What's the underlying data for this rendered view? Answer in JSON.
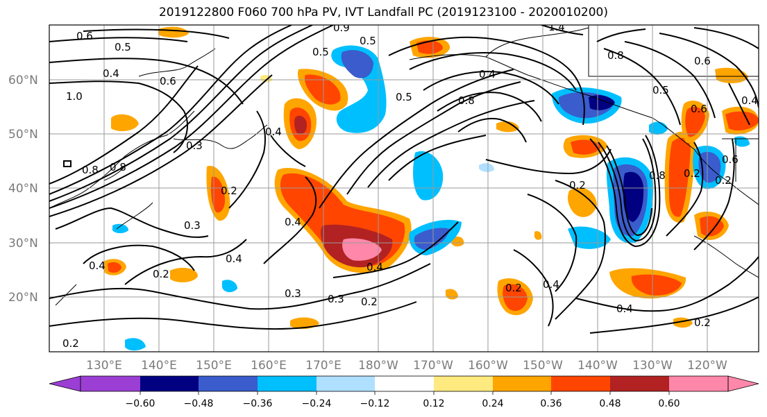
{
  "title": "2019122800 F060 700 hPa PV, IVT Landfall PC (2019123100 - 2020010200)",
  "lat_labels": [
    "60°N",
    "50°N",
    "40°N",
    "30°N",
    "20°N"
  ],
  "lon_labels": [
    "130°E",
    "140°E",
    "150°E",
    "160°E",
    "170°E",
    "180°W",
    "170°W",
    "160°W",
    "150°W",
    "140°W",
    "130°W",
    "120°W"
  ],
  "colorbar": {
    "ticks": [
      "−0.60",
      "−0.48",
      "−0.36",
      "−0.24",
      "−0.12",
      "0.12",
      "0.24",
      "0.36",
      "0.48",
      "0.60"
    ],
    "colors": [
      "#9b3fd4",
      "#000080",
      "#3a5ccc",
      "#00bfff",
      "#b0e0ff",
      "#ffffff",
      "#ffea80",
      "#ffa500",
      "#ff4500",
      "#b22222",
      "#ff88aa"
    ]
  },
  "contour_labels": [
    "0.6",
    "0.5",
    "0.4",
    "1.0",
    "0.6",
    "0.8",
    "0.8",
    "0.3",
    "0.4",
    "0.2",
    "0.3",
    "0.4",
    "0.2",
    "0.4",
    "0.3",
    "0.4",
    "0.3",
    "0.2",
    "0.4",
    "0.2",
    "0.2",
    "0.4",
    "0.8",
    "0.4",
    "0.5",
    "0.6",
    "1.4",
    "0.8",
    "0.6",
    "0.5",
    "0.5",
    "0.9",
    "0.5",
    "0.2",
    "0.4",
    "0.2",
    "0.8",
    "0.4",
    "0.6",
    "0.2",
    "0.2"
  ],
  "palette": {
    "frame": "#000000",
    "grid": "#9a9a9a"
  }
}
